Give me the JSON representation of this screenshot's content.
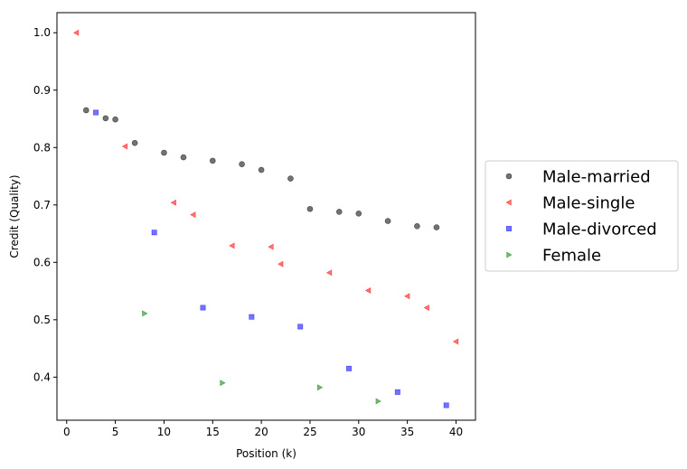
{
  "chart_data": {
    "type": "scatter",
    "xlabel": "Position (k)",
    "ylabel": "Credit (Quality)",
    "xlim": [
      -1,
      42
    ],
    "ylim": [
      0.325,
      1.035
    ],
    "xticks": [
      "0",
      "5",
      "10",
      "15",
      "20",
      "25",
      "30",
      "35",
      "40"
    ],
    "yticks": [
      "0.4",
      "0.5",
      "0.6",
      "0.7",
      "0.8",
      "0.9",
      "1.0"
    ],
    "legend_position": "right, outside plot",
    "series": [
      {
        "name": "Male-married",
        "marker": "circle",
        "color": "#000000",
        "points": [
          [
            2,
            0.865
          ],
          [
            4,
            0.851
          ],
          [
            5,
            0.849
          ],
          [
            7,
            0.808
          ],
          [
            10,
            0.791
          ],
          [
            12,
            0.783
          ],
          [
            15,
            0.777
          ],
          [
            18,
            0.771
          ],
          [
            20,
            0.761
          ],
          [
            23,
            0.746
          ],
          [
            25,
            0.693
          ],
          [
            28,
            0.688
          ],
          [
            30,
            0.685
          ],
          [
            33,
            0.672
          ],
          [
            36,
            0.663
          ],
          [
            38,
            0.661
          ]
        ]
      },
      {
        "name": "Male-single",
        "marker": "triangle-left",
        "color": "#ff0000",
        "points": [
          [
            1,
            1.0
          ],
          [
            6,
            0.802
          ],
          [
            11,
            0.704
          ],
          [
            13,
            0.683
          ],
          [
            17,
            0.629
          ],
          [
            21,
            0.627
          ],
          [
            22,
            0.597
          ],
          [
            27,
            0.582
          ],
          [
            31,
            0.551
          ],
          [
            35,
            0.541
          ],
          [
            37,
            0.521
          ],
          [
            40,
            0.462
          ]
        ]
      },
      {
        "name": "Male-divorced",
        "marker": "square",
        "color": "#0000ff",
        "points": [
          [
            3,
            0.861
          ],
          [
            9,
            0.652
          ],
          [
            14,
            0.521
          ],
          [
            19,
            0.505
          ],
          [
            24,
            0.488
          ],
          [
            29,
            0.415
          ],
          [
            34,
            0.374
          ],
          [
            39,
            0.351
          ]
        ]
      },
      {
        "name": "Female",
        "marker": "triangle-right",
        "color": "#008000",
        "points": [
          [
            8,
            0.511
          ],
          [
            16,
            0.39
          ],
          [
            26,
            0.382
          ],
          [
            32,
            0.358
          ]
        ]
      }
    ]
  }
}
